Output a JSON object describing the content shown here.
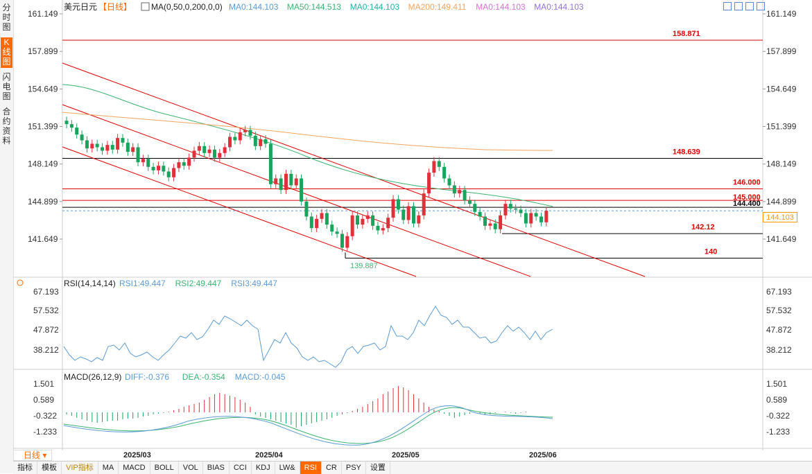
{
  "sidebar": {
    "tabs": [
      "分时图",
      "K线图",
      "闪电图",
      "合约资料"
    ],
    "active_index": 1
  },
  "header": {
    "symbol": "美元日元",
    "period_tag": "【日线】",
    "ma_label": "MA(0,50,0,200,0,0)",
    "ma_items": [
      {
        "text": "MA0:144.103",
        "color": "#5b9bd5"
      },
      {
        "text": "MA50:144.513",
        "color": "#3cb371"
      },
      {
        "text": "MA0:144.103",
        "color": "#20b2aa"
      },
      {
        "text": "MA200:149.411",
        "color": "#f4a460"
      },
      {
        "text": "MA0:144.103",
        "color": "#da70d6"
      },
      {
        "text": "MA0:144.103",
        "color": "#9370db"
      }
    ]
  },
  "price_axis": {
    "ticks": [
      "161.149",
      "157.899",
      "154.649",
      "151.399",
      "148.149",
      "144.899",
      "141.649"
    ],
    "current": "144.103"
  },
  "levels": [
    {
      "label": "158.871",
      "value": 158.871,
      "color": "#e00000",
      "line": "#e00000"
    },
    {
      "label": "148.639",
      "value": 148.639,
      "color": "#e00000",
      "line": "#000000"
    },
    {
      "label": "146.000",
      "value": 146.0,
      "color": "#e00000",
      "line": "#e00000"
    },
    {
      "label": "145.000",
      "value": 145.0,
      "color": "#e00000",
      "line": "#e00000"
    },
    {
      "label": "144.400",
      "value": 144.4,
      "color": "#000000",
      "line": "#000000"
    },
    {
      "label": "142.12",
      "value": 142.12,
      "color": "#e00000",
      "line": "#000000"
    },
    {
      "label": "140",
      "value": 140.0,
      "color": "#e00000",
      "line": "#000000"
    }
  ],
  "low_label": "139.887",
  "x_labels": [
    "2025/03",
    "2025/04",
    "2025/05",
    "2025/06"
  ],
  "rsi": {
    "title": "RSI(14,14,14)",
    "items": [
      {
        "text": "RSI1:49.447",
        "color": "#5b9bd5"
      },
      {
        "text": "RSI2:49.447",
        "color": "#3cb371"
      },
      {
        "text": "RSI3:49.447",
        "color": "#5b9bd5"
      }
    ],
    "ticks": [
      "67.193",
      "57.532",
      "47.872",
      "38.212"
    ]
  },
  "macd": {
    "title": "MACD(26,12,9)",
    "items": [
      {
        "text": "DIFF:-0.376",
        "color": "#5b9bd5"
      },
      {
        "text": "DEA:-0.354",
        "color": "#3cb371"
      },
      {
        "text": "MACD:-0.045",
        "color": "#5b9bd5"
      }
    ],
    "ticks": [
      "1.501",
      "0.589",
      "-0.322",
      "-1.233"
    ]
  },
  "period_box": "日线",
  "bottom_tabs": [
    "指标",
    "模板",
    "VIP指标",
    "MA",
    "MACD",
    "BOLL",
    "VOL",
    "BIAS",
    "CCI",
    "KDJ",
    "LW&",
    "RSI",
    "CR",
    "PSY",
    "设置"
  ],
  "bottom_active": "RSI",
  "chart_data": {
    "type": "candlestick",
    "price_range": [
      139.887,
      161.149
    ],
    "candles_close": [
      151.6,
      151.3,
      150.7,
      150.2,
      149.5,
      149.9,
      149.6,
      149.3,
      149.8,
      149.4,
      150.4,
      150.0,
      149.2,
      149.6,
      148.3,
      148.6,
      147.9,
      147.6,
      148.0,
      147.5,
      147.0,
      147.8,
      148.3,
      148.0,
      148.7,
      149.3,
      149.7,
      149.1,
      149.4,
      148.7,
      149.1,
      149.6,
      150.5,
      150.2,
      150.9,
      151.1,
      150.6,
      149.7,
      150.3,
      149.9,
      146.4,
      146.9,
      145.9,
      147.3,
      146.3,
      146.9,
      144.9,
      143.6,
      142.6,
      143.4,
      143.9,
      142.9,
      142.3,
      142.1,
      140.9,
      141.9,
      143.7,
      142.9,
      143.4,
      143.7,
      142.8,
      142.4,
      142.6,
      143.5,
      145.1,
      144.2,
      143.3,
      144.5,
      143.0,
      143.7,
      145.6,
      147.4,
      148.4,
      147.9,
      146.9,
      146.3,
      145.6,
      145.9,
      145.0,
      144.7,
      144.0,
      143.6,
      142.8,
      143.0,
      142.5,
      143.7,
      144.7,
      144.3,
      144.2,
      143.9,
      143.0,
      143.9,
      143.6,
      143.1,
      144.1
    ]
  }
}
